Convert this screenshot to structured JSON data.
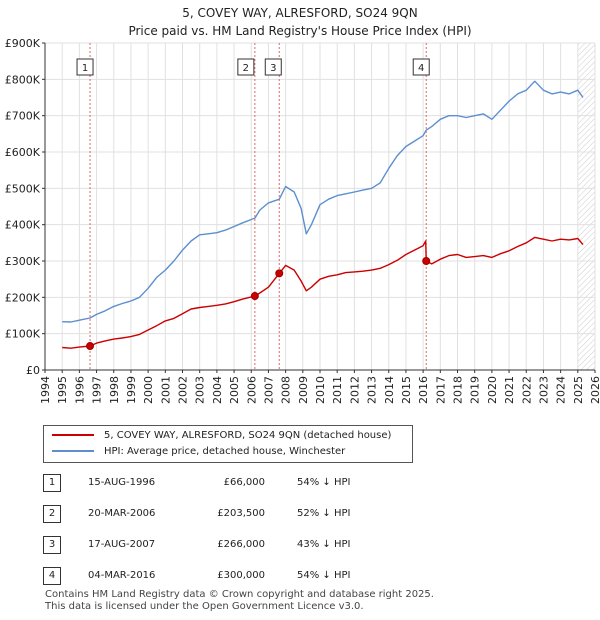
{
  "header": {
    "title": "5, COVEY WAY, ALRESFORD, SO24 9QN",
    "subtitle": "Price paid vs. HM Land Registry's House Price Index (HPI)"
  },
  "chart_data": {
    "type": "line",
    "title": "5, COVEY WAY, ALRESFORD, SO24 9QN",
    "subtitle": "Price paid vs. HM Land Registry's House Price Index (HPI)",
    "xlabel": "",
    "ylabel": "",
    "xlim": [
      1994,
      2026
    ],
    "ylim": [
      0,
      900000
    ],
    "x_ticks": [
      1994,
      1995,
      1996,
      1997,
      1998,
      1999,
      2000,
      2001,
      2002,
      2003,
      2004,
      2005,
      2006,
      2007,
      2008,
      2009,
      2010,
      2011,
      2012,
      2013,
      2014,
      2015,
      2016,
      2017,
      2018,
      2019,
      2020,
      2021,
      2022,
      2023,
      2024,
      2025,
      2026
    ],
    "x_tick_labels": [
      "1994",
      "1995",
      "1996",
      "1997",
      "1998",
      "1999",
      "2000",
      "2001",
      "2002",
      "2003",
      "2004",
      "2005",
      "2006",
      "2007",
      "2008",
      "2009",
      "2010",
      "2011",
      "2012",
      "2013",
      "2014",
      "2015",
      "2016",
      "2017",
      "2018",
      "2019",
      "2020",
      "2021",
      "2022",
      "2023",
      "2024",
      "2025",
      "2026"
    ],
    "y_ticks": [
      0,
      100000,
      200000,
      300000,
      400000,
      500000,
      600000,
      700000,
      800000,
      900000
    ],
    "y_tick_labels": [
      "£0",
      "£100K",
      "£200K",
      "£300K",
      "£400K",
      "£500K",
      "£600K",
      "£700K",
      "£800K",
      "£900K"
    ],
    "grid": true,
    "series": [
      {
        "name": "5, COVEY WAY, ALRESFORD, SO24 9QN (detached house)",
        "color": "#cc0000",
        "x": [
          1995.0,
          1995.5,
          1996.0,
          1996.62,
          1997.0,
          1997.5,
          1998.0,
          1998.5,
          1999.0,
          1999.5,
          2000.0,
          2000.5,
          2001.0,
          2001.5,
          2002.0,
          2002.5,
          2003.0,
          2003.5,
          2004.0,
          2004.5,
          2005.0,
          2005.5,
          2006.21,
          2006.5,
          2007.0,
          2007.63,
          2008.0,
          2008.5,
          2008.9,
          2009.2,
          2009.5,
          2010.0,
          2010.5,
          2011.0,
          2011.5,
          2012.0,
          2012.5,
          2013.0,
          2013.5,
          2014.0,
          2014.5,
          2015.0,
          2015.5,
          2016.0,
          2016.15,
          2016.18,
          2016.5,
          2017.0,
          2017.5,
          2018.0,
          2018.5,
          2019.0,
          2019.5,
          2020.0,
          2020.5,
          2021.0,
          2021.5,
          2022.0,
          2022.5,
          2023.0,
          2023.5,
          2024.0,
          2024.5,
          2025.0,
          2025.3
        ],
        "values": [
          62000,
          60000,
          63000,
          66000,
          74000,
          80000,
          85000,
          88000,
          92000,
          98000,
          110000,
          122000,
          135000,
          142000,
          155000,
          168000,
          172000,
          175000,
          178000,
          182000,
          188000,
          195000,
          203500,
          212000,
          228000,
          266000,
          288000,
          275000,
          245000,
          218000,
          228000,
          250000,
          258000,
          262000,
          268000,
          270000,
          272000,
          275000,
          280000,
          290000,
          302000,
          318000,
          330000,
          342000,
          355000,
          300000,
          292000,
          305000,
          315000,
          318000,
          310000,
          312000,
          315000,
          310000,
          320000,
          328000,
          340000,
          350000,
          365000,
          360000,
          355000,
          360000,
          358000,
          362000,
          345000
        ]
      },
      {
        "name": "HPI: Average price, detached house, Winchester",
        "color": "#5b8fd0",
        "x": [
          1995.0,
          1995.5,
          1996.0,
          1996.62,
          1997.0,
          1997.5,
          1998.0,
          1998.5,
          1999.0,
          1999.5,
          2000.0,
          2000.5,
          2001.0,
          2001.5,
          2002.0,
          2002.5,
          2003.0,
          2003.5,
          2004.0,
          2004.5,
          2005.0,
          2005.5,
          2006.21,
          2006.5,
          2007.0,
          2007.63,
          2008.0,
          2008.5,
          2008.9,
          2009.2,
          2009.5,
          2010.0,
          2010.5,
          2011.0,
          2011.5,
          2012.0,
          2012.5,
          2013.0,
          2013.5,
          2014.0,
          2014.5,
          2015.0,
          2015.5,
          2016.0,
          2016.18,
          2016.5,
          2017.0,
          2017.5,
          2018.0,
          2018.5,
          2019.0,
          2019.5,
          2020.0,
          2020.5,
          2021.0,
          2021.5,
          2022.0,
          2022.5,
          2023.0,
          2023.5,
          2024.0,
          2024.5,
          2025.0,
          2025.3
        ],
        "values": [
          133000,
          132000,
          137000,
          143000,
          153000,
          163000,
          175000,
          183000,
          190000,
          200000,
          225000,
          255000,
          275000,
          300000,
          330000,
          355000,
          372000,
          375000,
          378000,
          385000,
          395000,
          405000,
          418000,
          440000,
          460000,
          470000,
          505000,
          490000,
          445000,
          375000,
          400000,
          455000,
          470000,
          480000,
          485000,
          490000,
          495000,
          500000,
          515000,
          555000,
          590000,
          615000,
          630000,
          645000,
          660000,
          670000,
          690000,
          700000,
          700000,
          695000,
          700000,
          705000,
          690000,
          715000,
          740000,
          760000,
          770000,
          795000,
          770000,
          760000,
          765000,
          760000,
          770000,
          750000
        ]
      }
    ],
    "sales": [
      {
        "label": "1",
        "x": 1996.62,
        "date": "15-AUG-1996",
        "price_value": 66000,
        "price": "£66,000",
        "hpi_note": "54% ↓ HPI"
      },
      {
        "label": "2",
        "x": 2006.21,
        "date": "20-MAR-2006",
        "price_value": 203500,
        "price": "£203,500",
        "hpi_note": "52% ↓ HPI"
      },
      {
        "label": "3",
        "x": 2007.63,
        "date": "17-AUG-2007",
        "price_value": 266000,
        "price": "£266,000",
        "hpi_note": "43% ↓ HPI"
      },
      {
        "label": "4",
        "x": 2016.18,
        "date": "04-MAR-2016",
        "price_value": 300000,
        "price": "£300,000",
        "hpi_note": "54% ↓ HPI"
      }
    ],
    "forecast_from": 2025.0,
    "legend_position": "below"
  },
  "legend": {
    "property_label": "5, COVEY WAY, ALRESFORD, SO24 9QN (detached house)",
    "hpi_label": "HPI: Average price, detached house, Winchester",
    "property_color": "#cc0000",
    "hpi_color": "#5b8fd0"
  },
  "sales_table": [
    {
      "label": "1",
      "date": "15-AUG-1996",
      "price": "£66,000",
      "hpi": "54% ↓ HPI"
    },
    {
      "label": "2",
      "date": "20-MAR-2006",
      "price": "£203,500",
      "hpi": "52% ↓ HPI"
    },
    {
      "label": "3",
      "date": "17-AUG-2007",
      "price": "£266,000",
      "hpi": "43% ↓ HPI"
    },
    {
      "label": "4",
      "date": "04-MAR-2016",
      "price": "£300,000",
      "hpi": "54% ↓ HPI"
    }
  ],
  "footer": {
    "line1": "Contains HM Land Registry data © Crown copyright and database right 2025.",
    "line2": "This data is licensed under the Open Government Licence v3.0."
  }
}
